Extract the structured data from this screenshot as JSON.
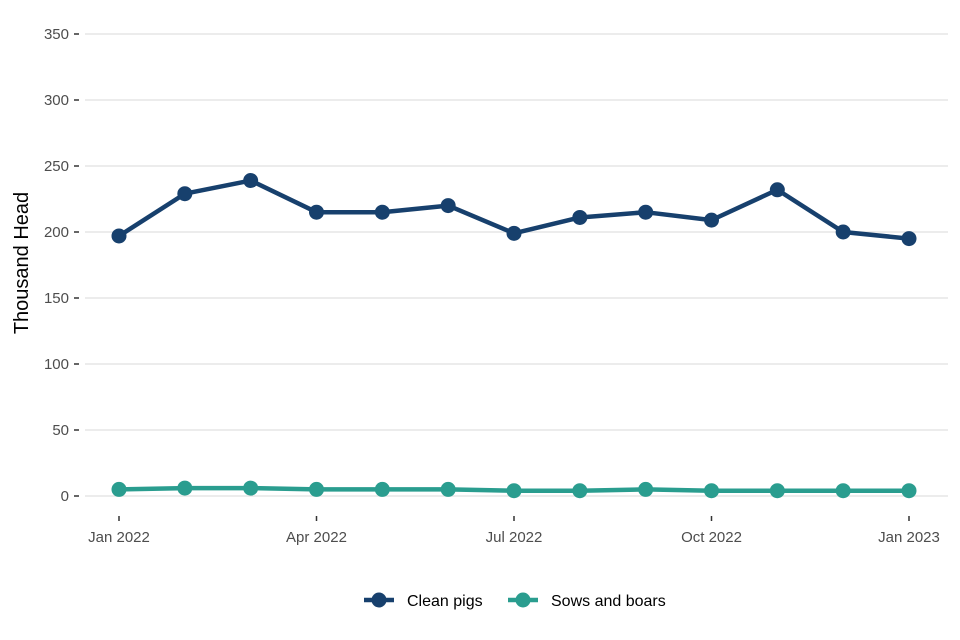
{
  "chart_data": {
    "type": "line",
    "xlabel": "",
    "ylabel": "Thousand Head",
    "x": [
      "2022-01",
      "2022-02",
      "2022-03",
      "2022-04",
      "2022-05",
      "2022-06",
      "2022-07",
      "2022-08",
      "2022-09",
      "2022-10",
      "2022-11",
      "2022-12",
      "2023-01"
    ],
    "x_ticks": [
      "Jan 2022",
      "Apr 2022",
      "Jul 2022",
      "Oct 2022",
      "Jan 2023"
    ],
    "y_ticks": [
      0,
      50,
      100,
      150,
      200,
      250,
      300,
      350
    ],
    "ylim": [
      0,
      350
    ],
    "grid": true,
    "legend_position": "bottom",
    "series": [
      {
        "name": "Clean pigs",
        "color": "#17406d",
        "values": [
          197,
          229,
          239,
          215,
          215,
          220,
          199,
          211,
          215,
          209,
          232,
          200,
          195
        ]
      },
      {
        "name": "Sows and boars",
        "color": "#2a9d8f",
        "values": [
          5,
          6,
          6,
          5,
          5,
          5,
          4,
          4,
          5,
          4,
          4,
          4,
          4
        ]
      }
    ]
  }
}
